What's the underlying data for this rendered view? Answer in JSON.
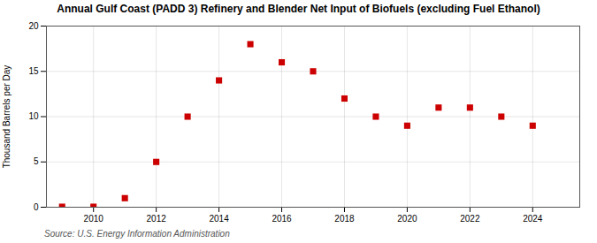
{
  "chart_data": {
    "type": "scatter",
    "title": "Annual Gulf Coast (PADD 3) Refinery and Blender Net Input of Biofuels (excluding Fuel Ethanol)",
    "ylabel": "Thousand Barrels per Day",
    "source": "Source: U.S. Energy Information Administration",
    "x": [
      2009,
      2010,
      2011,
      2012,
      2013,
      2014,
      2015,
      2016,
      2017,
      2018,
      2019,
      2020,
      2021,
      2022,
      2023,
      2024
    ],
    "values": [
      0.05,
      0.05,
      1.0,
      5.0,
      10.0,
      14.0,
      18.0,
      16.0,
      15.0,
      12.0,
      10.0,
      9.0,
      11.0,
      11.0,
      10.0,
      9.0
    ],
    "color": "#CC0000",
    "marker": "square",
    "xlim": [
      2008.5,
      2025.5
    ],
    "xticks": [
      2010,
      2012,
      2014,
      2016,
      2018,
      2020,
      2022,
      2024
    ],
    "ylim": [
      0,
      20
    ],
    "yticks": [
      0,
      5,
      10,
      15,
      20
    ],
    "grid": true
  }
}
